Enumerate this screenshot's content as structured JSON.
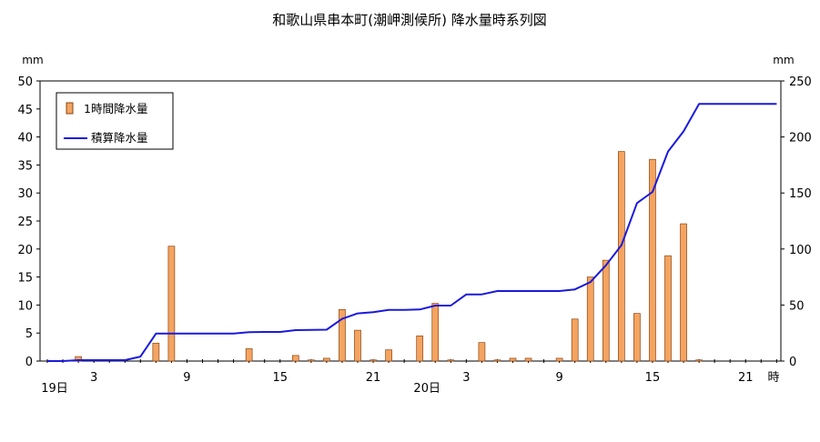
{
  "chart_data": {
    "type": "bar",
    "title": "和歌山県串本町(潮岬測候所)  降水量時系列図",
    "y_left_unit": "mm",
    "y_right_unit": "mm",
    "y_left_lim": [
      0,
      50
    ],
    "y_right_lim": [
      0,
      250
    ],
    "y_left_ticks": [
      "0",
      "5",
      "10",
      "15",
      "20",
      "25",
      "30",
      "35",
      "40",
      "45",
      "50"
    ],
    "y_right_ticks": [
      "0",
      "50",
      "100",
      "150",
      "200",
      "250"
    ],
    "x_tick_labels": [
      {
        "hour": 3,
        "label": "3"
      },
      {
        "hour": 9,
        "label": "9"
      },
      {
        "hour": 15,
        "label": "15"
      },
      {
        "hour": 21,
        "label": "21"
      },
      {
        "hour": 27,
        "label": "3"
      },
      {
        "hour": 33,
        "label": "9"
      },
      {
        "hour": 39,
        "label": "15"
      },
      {
        "hour": 45,
        "label": "21"
      }
    ],
    "day_labels": [
      {
        "hour": 0,
        "label": "19日"
      },
      {
        "hour": 24,
        "label": "20日"
      }
    ],
    "x_unit_label": "時",
    "x_range_hours": [
      0,
      47
    ],
    "legend_position": "top-left",
    "grid": false,
    "colors": {
      "bar": "#f4a460",
      "bar_edge": "#8b4513",
      "line": "#1a1adc"
    },
    "series": [
      {
        "name": "1時間降水量",
        "kind": "bar",
        "axis": "left",
        "x": [
          2,
          7,
          8,
          13,
          16,
          17,
          18,
          19,
          20,
          21,
          22,
          24,
          25,
          26,
          28,
          29,
          30,
          31,
          33,
          34,
          35,
          36,
          37,
          38,
          39,
          40,
          41,
          42
        ],
        "values": [
          0.8,
          3.2,
          20.5,
          2.2,
          1.0,
          0.2,
          0.5,
          9.2,
          5.5,
          0.2,
          2.0,
          4.5,
          10.3,
          0.2,
          3.3,
          0.2,
          0.5,
          0.5,
          0.5,
          7.5,
          15.0,
          18.0,
          37.4,
          8.5,
          36.0,
          18.8,
          24.5,
          0.2
        ]
      },
      {
        "name": "積算降水量",
        "kind": "line",
        "axis": "right",
        "x": [
          0,
          1,
          2,
          3,
          4,
          5,
          6,
          7,
          8,
          9,
          10,
          11,
          12,
          13,
          14,
          15,
          16,
          17,
          18,
          19,
          20,
          21,
          22,
          23,
          24,
          25,
          26,
          27,
          28,
          29,
          30,
          31,
          32,
          33,
          34,
          35,
          36,
          37,
          38,
          39,
          40,
          41,
          42,
          43,
          44,
          45,
          46,
          47
        ],
        "values": [
          0,
          0,
          0.8,
          0.8,
          0.8,
          0.8,
          4,
          24.5,
          24.5,
          24.5,
          24.5,
          24.5,
          24.5,
          25.8,
          26,
          26,
          27.6,
          27.8,
          28,
          37.7,
          42.5,
          43.7,
          45.6,
          45.6,
          46,
          49.5,
          49.5,
          59.5,
          59.5,
          62.5,
          62.5,
          62.5,
          62.5,
          62.5,
          64,
          70.5,
          85.5,
          103.5,
          141,
          151,
          187,
          205,
          229.5,
          229.5,
          229.5,
          229.5,
          229.5,
          229.5
        ]
      }
    ]
  }
}
